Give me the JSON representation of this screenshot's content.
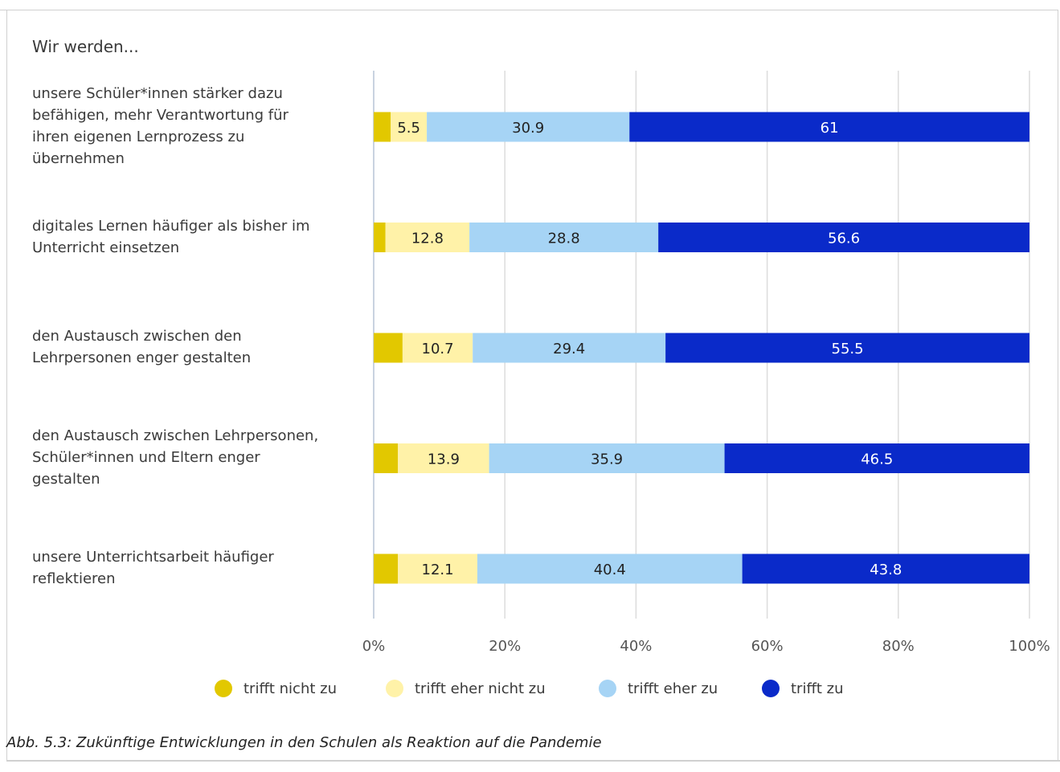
{
  "heading": "Wir werden...",
  "caption": "Abb. 5.3: Zukünftige Entwicklungen in den Schulen als Reaktion auf die Pandemie",
  "chart_data": {
    "type": "bar",
    "orientation": "horizontal",
    "stacked": true,
    "xlim": [
      0,
      100
    ],
    "x_ticks": [
      "0%",
      "20%",
      "40%",
      "60%",
      "80%",
      "100%"
    ],
    "grid": true,
    "legend_position": "bottom",
    "categories": [
      "unsere Schüler*innen stärker dazu befähigen, mehr Verantwortung für ihren eigenen Lernprozess zu übernehmen",
      "digitales Lernen häufiger als bisher im Unterricht einsetzen",
      "den Austausch zwischen den Lehrpersonen enger gestalten",
      "den Austausch zwischen Lehrpersonen, Schüler*innen und Eltern enger gestalten",
      "unsere Unterrichtsarbeit häufiger reflektieren"
    ],
    "category_lines": [
      [
        "unsere Schüler*innen stärker dazu",
        "befähigen, mehr Verantwortung für",
        "ihren eigenen Lernprozess zu",
        "übernehmen"
      ],
      [
        "digitales Lernen häufiger als bisher im",
        "Unterricht einsetzen"
      ],
      [
        "den Austausch zwischen den",
        "Lehrpersonen enger gestalten"
      ],
      [
        "den Austausch zwischen Lehrpersonen,",
        "Schüler*innen und Eltern enger",
        "gestalten"
      ],
      [
        "unsere Unterrichtsarbeit häufiger",
        "reflektieren"
      ]
    ],
    "series": [
      {
        "name": "trifft nicht zu",
        "color": "#e2c800",
        "values": [
          2.6,
          1.8,
          4.4,
          3.7,
          3.7
        ],
        "labels": [
          "",
          "",
          "",
          "",
          ""
        ],
        "label_color": "#222222"
      },
      {
        "name": "trifft eher nicht zu",
        "color": "#fff2a8",
        "values": [
          5.5,
          12.8,
          10.7,
          13.9,
          12.1
        ],
        "labels": [
          "5.5",
          "12.8",
          "10.7",
          "13.9",
          "12.1"
        ],
        "label_color": "#222222"
      },
      {
        "name": "trifft eher zu",
        "color": "#a6d4f5",
        "values": [
          30.9,
          28.8,
          29.4,
          35.9,
          40.4
        ],
        "labels": [
          "30.9",
          "28.8",
          "29.4",
          "35.9",
          "40.4"
        ],
        "label_color": "#222222"
      },
      {
        "name": "trifft zu",
        "color": "#0a2ac9",
        "values": [
          61,
          56.6,
          55.5,
          46.5,
          43.8
        ],
        "labels": [
          "61",
          "56.6",
          "55.5",
          "46.5",
          "43.8"
        ],
        "label_color": "#ffffff"
      }
    ]
  }
}
